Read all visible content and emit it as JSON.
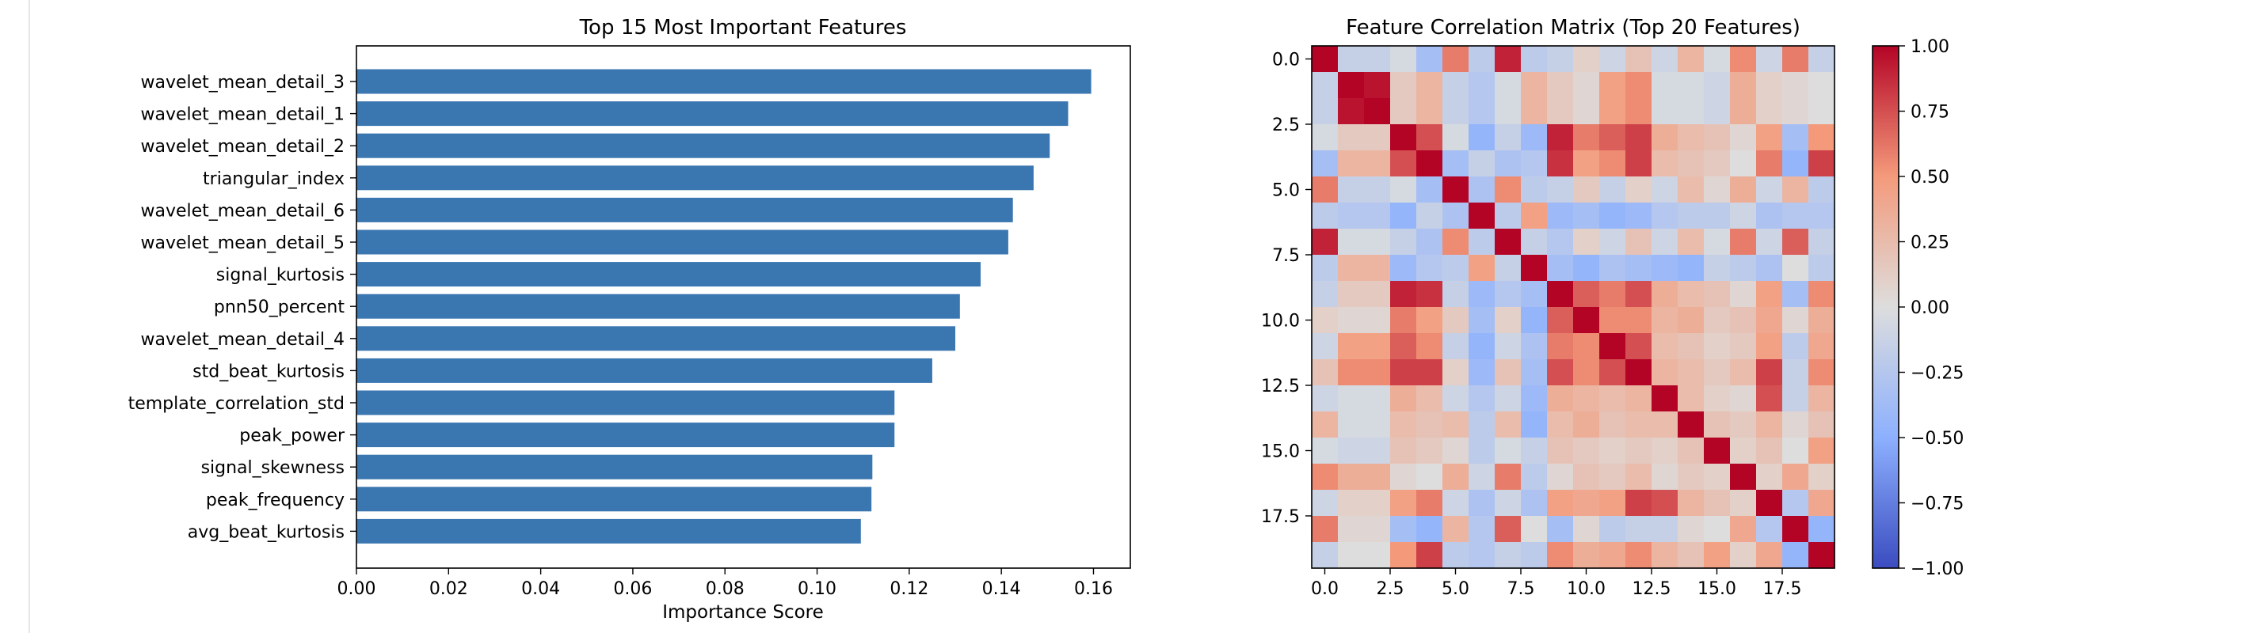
{
  "chart_data": [
    {
      "type": "bar",
      "orientation": "horizontal",
      "title": "Top 15 Most Important Features",
      "xlabel": "Importance Score",
      "ylabel": "",
      "xlim": [
        0,
        0.168
      ],
      "xticks": [
        "0.00",
        "0.02",
        "0.04",
        "0.06",
        "0.08",
        "0.10",
        "0.12",
        "0.14",
        "0.16"
      ],
      "categories": [
        "wavelet_mean_detail_3",
        "wavelet_mean_detail_1",
        "wavelet_mean_detail_2",
        "triangular_index",
        "wavelet_mean_detail_6",
        "wavelet_mean_detail_5",
        "signal_kurtosis",
        "pnn50_percent",
        "wavelet_mean_detail_4",
        "std_beat_kurtosis",
        "template_correlation_std",
        "peak_power",
        "signal_skewness",
        "peak_frequency",
        "avg_beat_kurtosis"
      ],
      "values": [
        0.1595,
        0.1545,
        0.1505,
        0.147,
        0.1425,
        0.1415,
        0.1355,
        0.131,
        0.13,
        0.125,
        0.1168,
        0.1168,
        0.112,
        0.1118,
        0.1095
      ],
      "color": "#3a76b0",
      "grid": false
    },
    {
      "type": "heatmap",
      "title": "Feature Correlation Matrix (Top 20 Features)",
      "colormap": "coolwarm",
      "vmin": -1.0,
      "vmax": 1.0,
      "ticks": [
        "0.0",
        "2.5",
        "5.0",
        "7.5",
        "10.0",
        "12.5",
        "15.0",
        "17.5"
      ],
      "colorbar_ticks": [
        "1.00",
        "0.75",
        "0.50",
        "0.25",
        "0.00",
        "−0.25",
        "−0.50",
        "−0.75",
        "−1.00"
      ],
      "matrix": [
        [
          1.0,
          -0.15,
          -0.15,
          -0.05,
          -0.35,
          0.6,
          -0.2,
          0.9,
          -0.2,
          -0.15,
          0.1,
          -0.1,
          0.2,
          -0.1,
          0.3,
          -0.05,
          0.55,
          -0.1,
          0.6,
          -0.15
        ],
        [
          -0.15,
          1.0,
          0.95,
          0.15,
          0.3,
          -0.15,
          -0.25,
          -0.05,
          0.3,
          0.15,
          0.05,
          0.45,
          0.55,
          -0.05,
          -0.05,
          -0.1,
          0.35,
          0.1,
          0.05,
          0.0
        ],
        [
          -0.15,
          0.95,
          1.0,
          0.15,
          0.3,
          -0.15,
          -0.25,
          -0.05,
          0.3,
          0.15,
          0.05,
          0.45,
          0.55,
          -0.05,
          -0.05,
          -0.1,
          0.35,
          0.1,
          0.05,
          0.0
        ],
        [
          -0.05,
          0.15,
          0.15,
          1.0,
          0.75,
          -0.05,
          -0.45,
          -0.15,
          -0.4,
          0.9,
          0.6,
          0.7,
          0.8,
          0.35,
          0.25,
          0.2,
          0.05,
          0.45,
          -0.35,
          0.5
        ],
        [
          -0.35,
          0.3,
          0.3,
          0.75,
          1.0,
          -0.35,
          -0.15,
          -0.3,
          -0.25,
          0.85,
          0.45,
          0.55,
          0.8,
          0.25,
          0.2,
          0.15,
          0.0,
          0.6,
          -0.45,
          0.8
        ],
        [
          0.6,
          -0.15,
          -0.15,
          -0.05,
          -0.35,
          1.0,
          -0.3,
          0.55,
          -0.2,
          -0.15,
          0.15,
          -0.15,
          0.1,
          -0.1,
          0.25,
          0.05,
          0.35,
          -0.1,
          0.3,
          -0.2
        ],
        [
          -0.2,
          -0.25,
          -0.25,
          -0.45,
          -0.15,
          -0.3,
          1.0,
          -0.2,
          0.45,
          -0.4,
          -0.35,
          -0.45,
          -0.4,
          -0.25,
          -0.2,
          -0.2,
          -0.1,
          -0.3,
          -0.25,
          -0.25
        ],
        [
          0.9,
          -0.05,
          -0.05,
          -0.15,
          -0.3,
          0.55,
          -0.2,
          1.0,
          -0.15,
          -0.25,
          0.1,
          -0.1,
          0.2,
          -0.1,
          0.25,
          -0.05,
          0.6,
          -0.1,
          0.7,
          -0.15
        ],
        [
          -0.2,
          0.3,
          0.3,
          -0.4,
          -0.25,
          -0.2,
          0.45,
          -0.15,
          1.0,
          -0.35,
          -0.45,
          -0.3,
          -0.35,
          -0.4,
          -0.45,
          -0.15,
          -0.2,
          -0.3,
          0.0,
          -0.2
        ],
        [
          -0.15,
          0.15,
          0.15,
          0.9,
          0.85,
          -0.15,
          -0.4,
          -0.25,
          -0.35,
          1.0,
          0.7,
          0.6,
          0.75,
          0.35,
          0.25,
          0.2,
          0.05,
          0.45,
          -0.35,
          0.55
        ],
        [
          0.1,
          0.05,
          0.05,
          0.6,
          0.45,
          0.15,
          -0.35,
          0.1,
          -0.45,
          0.7,
          1.0,
          0.55,
          0.55,
          0.3,
          0.35,
          0.15,
          0.2,
          0.4,
          0.05,
          0.35
        ],
        [
          -0.1,
          0.45,
          0.45,
          0.7,
          0.55,
          -0.15,
          -0.45,
          -0.1,
          -0.3,
          0.6,
          0.55,
          1.0,
          0.75,
          0.25,
          0.2,
          0.1,
          0.15,
          0.45,
          -0.2,
          0.4
        ],
        [
          0.2,
          0.55,
          0.55,
          0.8,
          0.8,
          0.1,
          -0.4,
          0.2,
          -0.35,
          0.75,
          0.55,
          0.75,
          1.0,
          0.3,
          0.25,
          0.15,
          0.25,
          0.8,
          -0.15,
          0.55
        ],
        [
          -0.1,
          -0.05,
          -0.05,
          0.35,
          0.25,
          -0.1,
          -0.25,
          -0.1,
          -0.4,
          0.35,
          0.3,
          0.25,
          0.3,
          1.0,
          0.25,
          0.1,
          0.05,
          0.75,
          -0.15,
          0.3
        ],
        [
          0.3,
          -0.05,
          -0.05,
          0.25,
          0.2,
          0.25,
          -0.2,
          0.25,
          -0.45,
          0.25,
          0.35,
          0.2,
          0.25,
          0.25,
          1.0,
          0.2,
          0.15,
          0.3,
          0.05,
          0.2
        ],
        [
          -0.05,
          -0.1,
          -0.1,
          0.2,
          0.15,
          0.05,
          -0.2,
          -0.05,
          -0.15,
          0.2,
          0.15,
          0.1,
          0.15,
          0.1,
          0.2,
          1.0,
          0.1,
          0.2,
          0.0,
          0.45
        ],
        [
          0.55,
          0.35,
          0.35,
          0.05,
          0.0,
          0.35,
          -0.1,
          0.6,
          -0.2,
          0.05,
          0.2,
          0.15,
          0.25,
          0.05,
          0.15,
          0.1,
          1.0,
          0.1,
          0.4,
          0.1
        ],
        [
          -0.1,
          0.1,
          0.1,
          0.45,
          0.6,
          -0.1,
          -0.3,
          -0.1,
          -0.3,
          0.45,
          0.4,
          0.45,
          0.8,
          0.75,
          0.3,
          0.2,
          0.1,
          1.0,
          -0.25,
          0.4
        ],
        [
          0.6,
          0.05,
          0.05,
          -0.35,
          -0.45,
          0.3,
          -0.25,
          0.7,
          0.0,
          -0.35,
          0.05,
          -0.2,
          -0.15,
          -0.15,
          0.05,
          0.0,
          0.4,
          -0.25,
          1.0,
          -0.45
        ],
        [
          -0.15,
          0.0,
          0.0,
          0.5,
          0.8,
          -0.2,
          -0.25,
          -0.15,
          -0.2,
          0.55,
          0.35,
          0.4,
          0.55,
          0.3,
          0.2,
          0.45,
          0.1,
          0.4,
          -0.45,
          1.0
        ]
      ]
    }
  ]
}
